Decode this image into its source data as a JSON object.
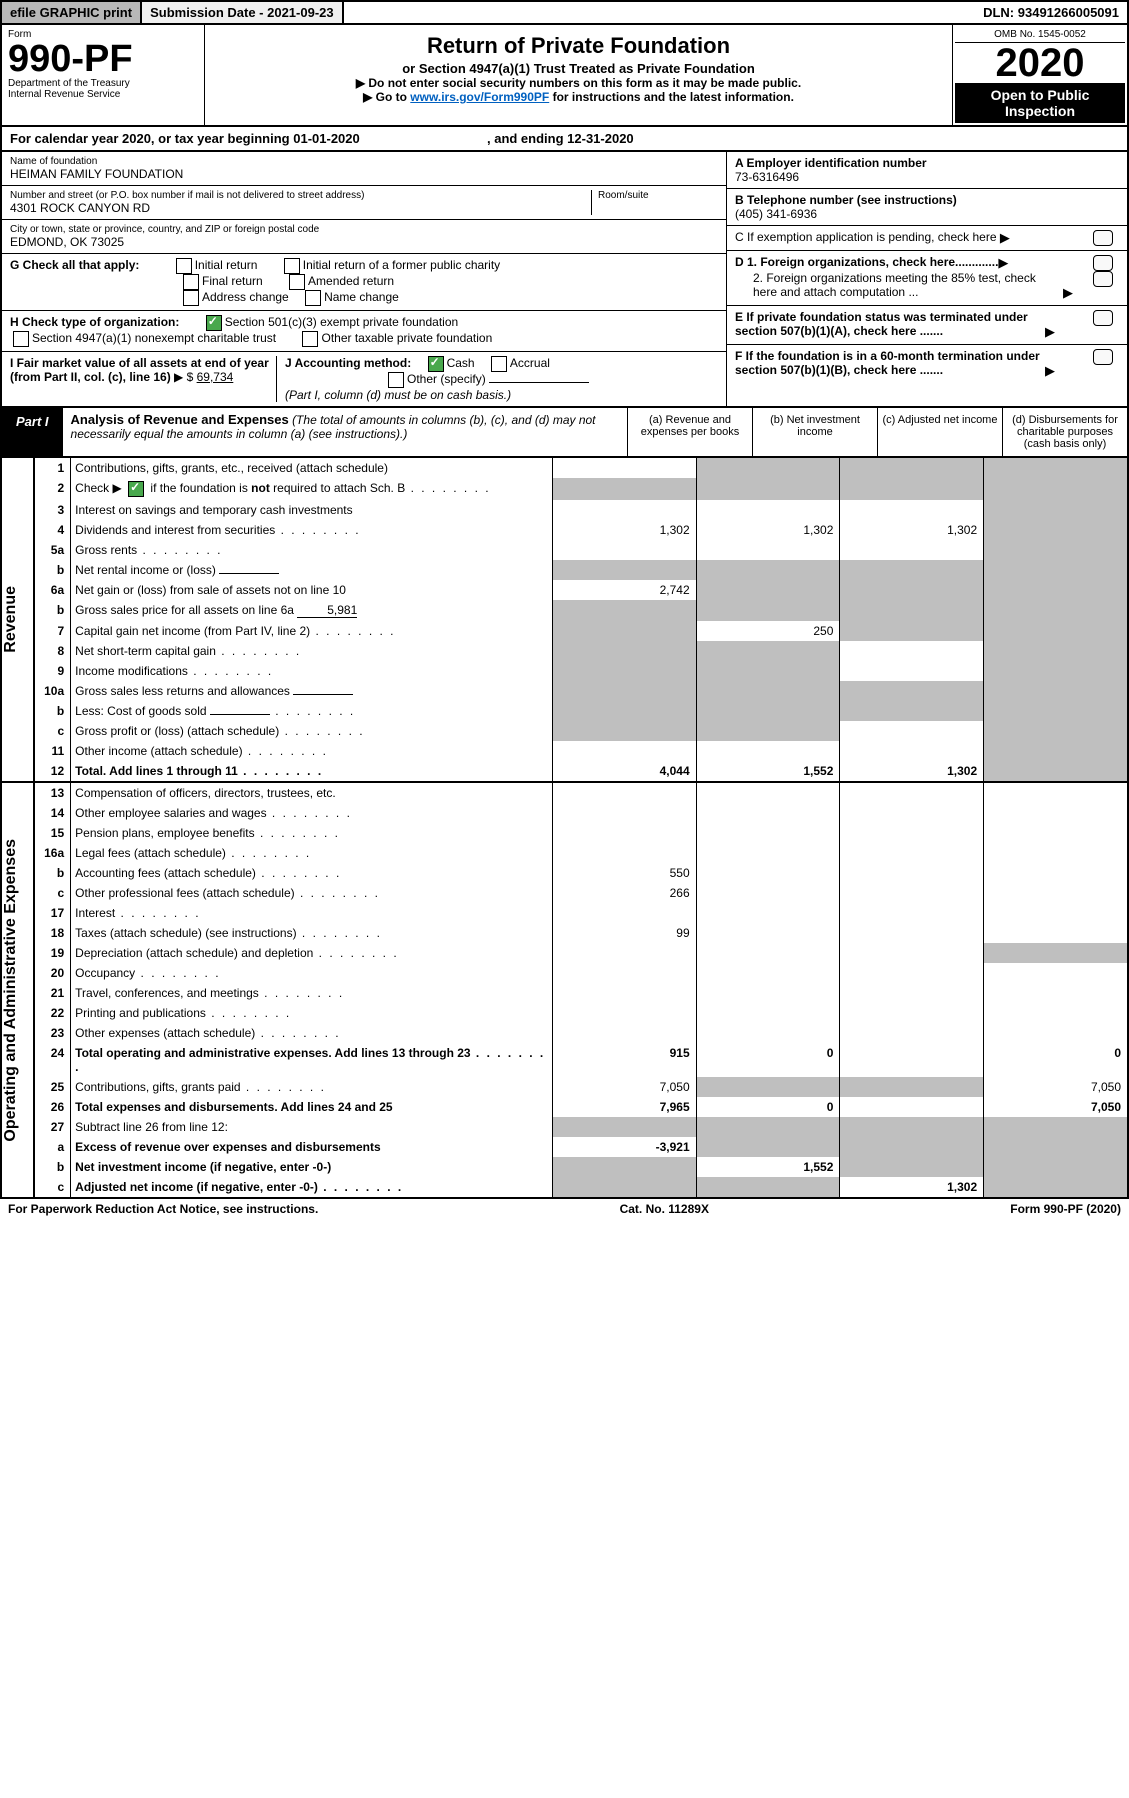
{
  "top": {
    "efile": "efile GRAPHIC print",
    "subdate_label": "Submission Date - ",
    "subdate": "2021-09-23",
    "dln_label": "DLN: ",
    "dln": "93491266005091"
  },
  "header": {
    "form_label": "Form",
    "form_num": "990-PF",
    "dept": "Department of the Treasury",
    "irs": "Internal Revenue Service",
    "title": "Return of Private Foundation",
    "subtitle": "or Section 4947(a)(1) Trust Treated as Private Foundation",
    "note1": "▶ Do not enter social security numbers on this form as it may be made public.",
    "note2": "▶ Go to ",
    "link": "www.irs.gov/Form990PF",
    "note3": " for instructions and the latest information.",
    "omb": "OMB No. 1545-0052",
    "year": "2020",
    "open": "Open to Public Inspection"
  },
  "cal": {
    "pre": "For calendar year 2020, or tax year beginning ",
    "begin": "01-01-2020",
    "mid": ", and ending ",
    "end": "12-31-2020"
  },
  "info": {
    "name_lbl": "Name of foundation",
    "name": "HEIMAN FAMILY FOUNDATION",
    "addr_lbl": "Number and street (or P.O. box number if mail is not delivered to street address)",
    "room_lbl": "Room/suite",
    "addr": "4301 ROCK CANYON RD",
    "city_lbl": "City or town, state or province, country, and ZIP or foreign postal code",
    "city": "EDMOND, OK  73025",
    "ein_lbl": "A Employer identification number",
    "ein": "73-6316496",
    "tel_lbl": "B Telephone number (see instructions)",
    "tel": "(405) 341-6936",
    "c": "C If exemption application is pending, check here",
    "d1": "D 1. Foreign organizations, check here.............",
    "d2": "2. Foreign organizations meeting the 85% test, check here and attach computation ...",
    "e": "E If private foundation status was terminated under section 507(b)(1)(A), check here .......",
    "f": "F  If the foundation is in a 60-month termination under section 507(b)(1)(B), check here .......",
    "g": "G Check all that apply:",
    "g_items": [
      "Initial return",
      "Initial return of a former public charity",
      "Final return",
      "Amended return",
      "Address change",
      "Name change"
    ],
    "h": "H Check type of organization:",
    "h1": "Section 501(c)(3) exempt private foundation",
    "h2": "Section 4947(a)(1) nonexempt charitable trust",
    "h3": "Other taxable private foundation",
    "i": "I Fair market value of all assets at end of year (from Part II, col. (c), line 16)",
    "i_val": "69,734",
    "j": "J Accounting method:",
    "j_cash": "Cash",
    "j_acc": "Accrual",
    "j_oth": "Other (specify)",
    "j_note": "(Part I, column (d) must be on cash basis.)"
  },
  "part1": {
    "tag": "Part I",
    "title": "Analysis of Revenue and Expenses",
    "paren": "(The total of amounts in columns (b), (c), and (d) may not necessarily equal the amounts in column (a) (see instructions).)",
    "colA": "(a)   Revenue and expenses per books",
    "colB": "(b)   Net investment income",
    "colC": "(c)   Adjusted net income",
    "colD": "(d)  Disbursements for charitable purposes (cash basis only)",
    "side1": "Revenue",
    "side2": "Operating and Administrative Expenses"
  },
  "rows": [
    {
      "n": "1",
      "d": "Contributions, gifts, grants, etc., received (attach schedule)",
      "a": "",
      "b": "s",
      "c": "s",
      "D": "s"
    },
    {
      "n": "2",
      "d": "Check ▶ ☑ if the foundation is not required to attach Sch. B",
      "dots": 1,
      "a": "s",
      "b": "s",
      "c": "s",
      "D": "s",
      "ck": true
    },
    {
      "n": "3",
      "d": "Interest on savings and temporary cash investments",
      "a": "",
      "b": "",
      "c": "",
      "D": "s"
    },
    {
      "n": "4",
      "d": "Dividends and interest from securities",
      "dots": 1,
      "a": "1,302",
      "b": "1,302",
      "c": "1,302",
      "D": "s"
    },
    {
      "n": "5a",
      "d": "Gross rents",
      "dots": 1,
      "a": "",
      "b": "",
      "c": "",
      "D": "s"
    },
    {
      "n": "b",
      "d": "Net rental income or (loss)",
      "inline": "",
      "a": "s",
      "b": "s",
      "c": "s",
      "D": "s"
    },
    {
      "n": "6a",
      "d": "Net gain or (loss) from sale of assets not on line 10",
      "a": "2,742",
      "b": "s",
      "c": "s",
      "D": "s"
    },
    {
      "n": "b",
      "d": "Gross sales price for all assets on line 6a",
      "inline": "5,981",
      "a": "s",
      "b": "s",
      "c": "s",
      "D": "s"
    },
    {
      "n": "7",
      "d": "Capital gain net income (from Part IV, line 2)",
      "dots": 1,
      "a": "s",
      "b": "250",
      "c": "s",
      "D": "s"
    },
    {
      "n": "8",
      "d": "Net short-term capital gain",
      "dots": 1,
      "a": "s",
      "b": "s",
      "c": "",
      "D": "s"
    },
    {
      "n": "9",
      "d": "Income modifications",
      "dots": 1,
      "a": "s",
      "b": "s",
      "c": "",
      "D": "s"
    },
    {
      "n": "10a",
      "d": "Gross sales less returns and allowances",
      "inline": "",
      "a": "s",
      "b": "s",
      "c": "s",
      "D": "s"
    },
    {
      "n": "b",
      "d": "Less: Cost of goods sold",
      "dots": 1,
      "inline": "",
      "a": "s",
      "b": "s",
      "c": "s",
      "D": "s"
    },
    {
      "n": "c",
      "d": "Gross profit or (loss) (attach schedule)",
      "dots": 1,
      "a": "s",
      "b": "s",
      "c": "",
      "D": "s"
    },
    {
      "n": "11",
      "d": "Other income (attach schedule)",
      "dots": 1,
      "a": "",
      "b": "",
      "c": "",
      "D": "s"
    },
    {
      "n": "12",
      "d": "Total. Add lines 1 through 11",
      "dots": 1,
      "tot": 1,
      "a": "4,044",
      "b": "1,552",
      "c": "1,302",
      "D": "s"
    }
  ],
  "rows2": [
    {
      "n": "13",
      "d": "Compensation of officers, directors, trustees, etc.",
      "a": "",
      "b": "",
      "c": "",
      "D": ""
    },
    {
      "n": "14",
      "d": "Other employee salaries and wages",
      "dots": 1,
      "a": "",
      "b": "",
      "c": "",
      "D": ""
    },
    {
      "n": "15",
      "d": "Pension plans, employee benefits",
      "dots": 1,
      "a": "",
      "b": "",
      "c": "",
      "D": ""
    },
    {
      "n": "16a",
      "d": "Legal fees (attach schedule)",
      "dots": 1,
      "a": "",
      "b": "",
      "c": "",
      "D": ""
    },
    {
      "n": "b",
      "d": "Accounting fees (attach schedule)",
      "dots": 1,
      "a": "550",
      "b": "",
      "c": "",
      "D": ""
    },
    {
      "n": "c",
      "d": "Other professional fees (attach schedule)",
      "dots": 1,
      "a": "266",
      "b": "",
      "c": "",
      "D": ""
    },
    {
      "n": "17",
      "d": "Interest",
      "dots": 1,
      "a": "",
      "b": "",
      "c": "",
      "D": ""
    },
    {
      "n": "18",
      "d": "Taxes (attach schedule) (see instructions)",
      "dots": 1,
      "a": "99",
      "b": "",
      "c": "",
      "D": ""
    },
    {
      "n": "19",
      "d": "Depreciation (attach schedule) and depletion",
      "dots": 1,
      "a": "",
      "b": "",
      "c": "",
      "D": "s"
    },
    {
      "n": "20",
      "d": "Occupancy",
      "dots": 1,
      "a": "",
      "b": "",
      "c": "",
      "D": ""
    },
    {
      "n": "21",
      "d": "Travel, conferences, and meetings",
      "dots": 1,
      "a": "",
      "b": "",
      "c": "",
      "D": ""
    },
    {
      "n": "22",
      "d": "Printing and publications",
      "dots": 1,
      "a": "",
      "b": "",
      "c": "",
      "D": ""
    },
    {
      "n": "23",
      "d": "Other expenses (attach schedule)",
      "dots": 1,
      "a": "",
      "b": "",
      "c": "",
      "D": ""
    },
    {
      "n": "24",
      "d": "Total operating and administrative expenses. Add lines 13 through 23",
      "dots": 1,
      "tot": 1,
      "a": "915",
      "b": "0",
      "c": "",
      "D": "0"
    },
    {
      "n": "25",
      "d": "Contributions, gifts, grants paid",
      "dots": 1,
      "a": "7,050",
      "b": "s",
      "c": "s",
      "D": "7,050"
    },
    {
      "n": "26",
      "d": "Total expenses and disbursements. Add lines 24 and 25",
      "tot": 1,
      "a": "7,965",
      "b": "0",
      "c": "",
      "D": "7,050"
    },
    {
      "n": "27",
      "d": "Subtract line 26 from line 12:",
      "a": "s",
      "b": "s",
      "c": "s",
      "D": "s"
    },
    {
      "n": "a",
      "d": "Excess of revenue over expenses and disbursements",
      "tot": 1,
      "a": "-3,921",
      "b": "s",
      "c": "s",
      "D": "s"
    },
    {
      "n": "b",
      "d": "Net investment income (if negative, enter -0-)",
      "tot": 1,
      "a": "s",
      "b": "1,552",
      "c": "s",
      "D": "s"
    },
    {
      "n": "c",
      "d": "Adjusted net income (if negative, enter -0-)",
      "dots": 1,
      "tot": 1,
      "a": "s",
      "b": "s",
      "c": "1,302",
      "D": "s"
    }
  ],
  "foot": {
    "l": "For Paperwork Reduction Act Notice, see instructions.",
    "c": "Cat. No. 11289X",
    "r": "Form 990-PF (2020)"
  }
}
